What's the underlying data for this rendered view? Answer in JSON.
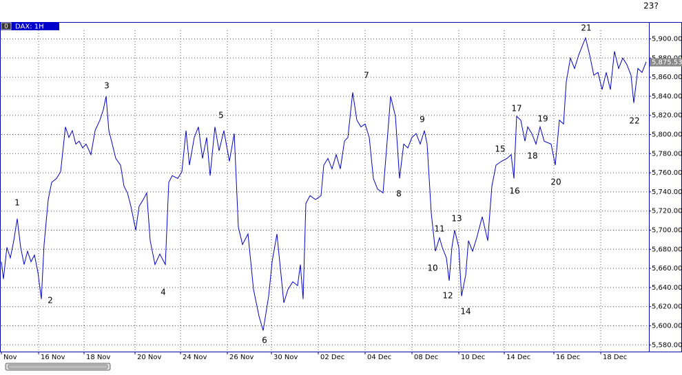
{
  "chart_data": {
    "type": "line",
    "title": "DAX: 1H",
    "panel_index": "0",
    "x": [
      0,
      1.5,
      4,
      6.5,
      9,
      11.5,
      14,
      16.5,
      19,
      21.5,
      24,
      26.5,
      29,
      31,
      34,
      36.5,
      40,
      43,
      46.5,
      49,
      51.5,
      54,
      56.5,
      59,
      61.5,
      65,
      68,
      71.5,
      74,
      76,
      78,
      80,
      83,
      86.5,
      89,
      91.5,
      94,
      97.5,
      100,
      103,
      105.5,
      108,
      111.5,
      115,
      119,
      121.5,
      124,
      128,
      131,
      134,
      136.5,
      140,
      143,
      146,
      149,
      151.5,
      155,
      158,
      161.5,
      165.5,
      169,
      172,
      175,
      179,
      183,
      187,
      190,
      194,
      196.5,
      200,
      203,
      205,
      208,
      211.5,
      215,
      217,
      219,
      221,
      224,
      228,
      232,
      234,
      237,
      240,
      243,
      246,
      249,
      251.5,
      255,
      258,
      261,
      264,
      267,
      270,
      273,
      277,
      280,
      282.5,
      286,
      289,
      292,
      295,
      298,
      301,
      304,
      307,
      309,
      312,
      315,
      318,
      320,
      323,
      325,
      327,
      329,
      332,
      334,
      337,
      339,
      342,
      345,
      349,
      353,
      356,
      359,
      363,
      367,
      370,
      372,
      374,
      377,
      380,
      382,
      385,
      388,
      391,
      394,
      399,
      402,
      405,
      408,
      410,
      413,
      416,
      419,
      422,
      424,
      427,
      430,
      433,
      436,
      439,
      442,
      445,
      448,
      451,
      454,
      457,
      459,
      462,
      465,
      468
    ],
    "series": [
      {
        "name": "DAX",
        "color": "#0000cc",
        "values": [
          5667,
          5649,
          5682,
          5671,
          5689,
          5712,
          5682,
          5664,
          5678,
          5667,
          5674,
          5656,
          5628,
          5685,
          5732,
          5750,
          5754,
          5761,
          5808,
          5797,
          5804,
          5790,
          5793,
          5786,
          5790,
          5779,
          5804,
          5815,
          5826,
          5840,
          5804,
          5793,
          5775,
          5768,
          5746,
          5739,
          5725,
          5700,
          5725,
          5732,
          5739,
          5689,
          5664,
          5675,
          5664,
          5750,
          5757,
          5754,
          5761,
          5804,
          5768,
          5797,
          5808,
          5775,
          5797,
          5757,
          5808,
          5783,
          5804,
          5772,
          5801,
          5703,
          5685,
          5696,
          5638,
          5610,
          5595,
          5631,
          5667,
          5696,
          5653,
          5624,
          5638,
          5646,
          5642,
          5664,
          5628,
          5728,
          5736,
          5732,
          5736,
          5768,
          5775,
          5764,
          5779,
          5764,
          5793,
          5797,
          5844,
          5815,
          5808,
          5811,
          5797,
          5754,
          5743,
          5739,
          5793,
          5840,
          5819,
          5754,
          5790,
          5786,
          5797,
          5801,
          5790,
          5804,
          5790,
          5718,
          5678,
          5692,
          5682,
          5671,
          5647,
          5682,
          5700,
          5682,
          5631,
          5653,
          5689,
          5678,
          5692,
          5714,
          5689,
          5746,
          5768,
          5772,
          5775,
          5779,
          5754,
          5819,
          5815,
          5793,
          5808,
          5801,
          5790,
          5808,
          5793,
          5790,
          5768,
          5815,
          5811,
          5855,
          5880,
          5869,
          5883,
          5894,
          5901,
          5883,
          5862,
          5865,
          5847,
          5865,
          5847,
          5887,
          5869,
          5880,
          5873,
          5862,
          5833,
          5869,
          5865,
          5876
        ]
      }
    ],
    "xlim": [
      0,
      470
    ],
    "xticks": [
      {
        "value": 0,
        "label": "Nov"
      },
      {
        "value": 27,
        "label": "16 Nov"
      },
      {
        "value": 60,
        "label": "18 Nov"
      },
      {
        "value": 97,
        "label": "20 Nov"
      },
      {
        "value": 130,
        "label": "24 Nov"
      },
      {
        "value": 164,
        "label": "26 Nov"
      },
      {
        "value": 196,
        "label": "30 Nov"
      },
      {
        "value": 230,
        "label": "02 Dec"
      },
      {
        "value": 264,
        "label": "04 Dec"
      },
      {
        "value": 298,
        "label": "08 Dec"
      },
      {
        "value": 332,
        "label": "10 Dec"
      },
      {
        "value": 365,
        "label": "14 Dec"
      },
      {
        "value": 401,
        "label": "16 Dec"
      },
      {
        "value": 435,
        "label": "18 Dec"
      }
    ],
    "ylim": [
      5573,
      5909
    ],
    "yticks": [
      {
        "value": 5580,
        "label": "5,580.00"
      },
      {
        "value": 5600,
        "label": "5,600.00"
      },
      {
        "value": 5620,
        "label": "5,620.00"
      },
      {
        "value": 5640,
        "label": "5,640.00"
      },
      {
        "value": 5660,
        "label": "5,660.00"
      },
      {
        "value": 5680,
        "label": "5,680.00"
      },
      {
        "value": 5700,
        "label": "5,700.00"
      },
      {
        "value": 5720,
        "label": "5,720.00"
      },
      {
        "value": 5740,
        "label": "5,740.00"
      },
      {
        "value": 5760,
        "label": "5,760.00"
      },
      {
        "value": 5780,
        "label": "5,780.00"
      },
      {
        "value": 5800,
        "label": "5,800.00"
      },
      {
        "value": 5820,
        "label": "5,820.00"
      },
      {
        "value": 5840,
        "label": "5,840.00"
      },
      {
        "value": 5860,
        "label": "5,860.00"
      },
      {
        "value": 5880,
        "label": "5,880.00"
      },
      {
        "value": 5900,
        "label": "5,900.00"
      }
    ],
    "last_value": {
      "value": 5875.53,
      "label": "5,875.53"
    },
    "grid": true,
    "annotations": [
      "1",
      "2",
      "3",
      "4",
      "5",
      "6",
      "7",
      "8",
      "9",
      "10",
      "11",
      "12",
      "13",
      "14",
      "15",
      "16",
      "17",
      "18",
      "19",
      "20",
      "21",
      "22",
      "23?"
    ]
  }
}
